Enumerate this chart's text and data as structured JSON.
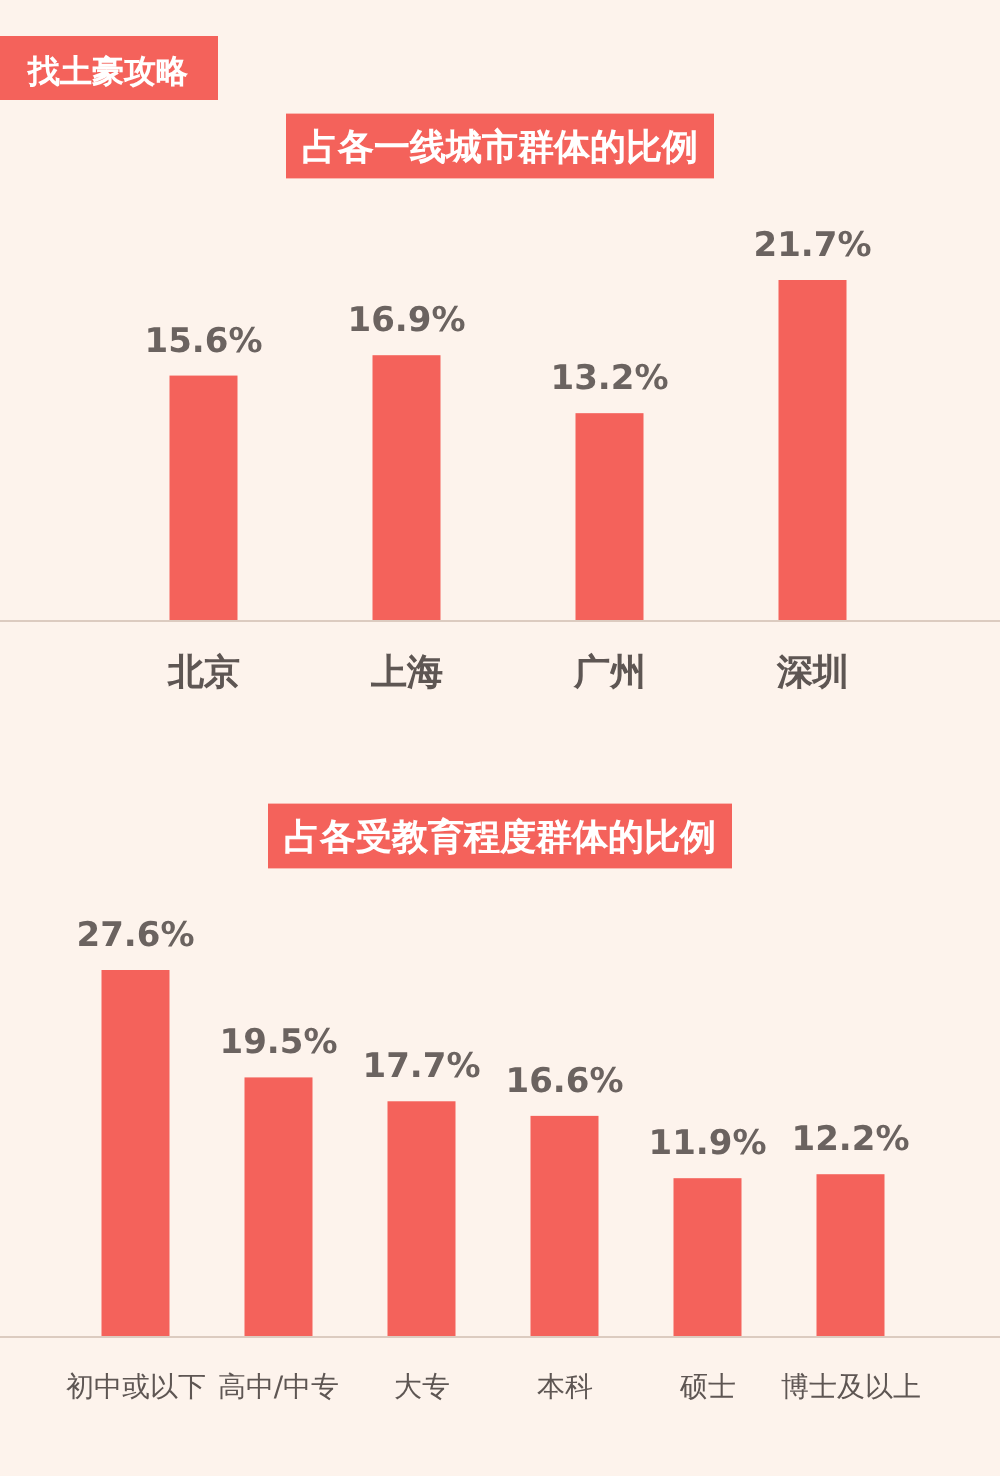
{
  "chart_data": [
    {
      "type": "bar",
      "title": "占各一线城市群体的比例",
      "annotations": [
        "找土豪攻略"
      ],
      "categories": [
        "北京",
        "上海",
        "广州",
        "深圳"
      ],
      "values": [
        15.6,
        16.9,
        13.2,
        21.7
      ],
      "color": "#f4625b",
      "value_labels": [
        "15.6%",
        "16.9%",
        "13.2%",
        "21.7%"
      ]
    },
    {
      "type": "bar",
      "title": "占各受教育程度群体的比例",
      "categories": [
        "初中或以下",
        "高中/中专",
        "大专",
        "本科",
        "硕士",
        "博士及以上"
      ],
      "values": [
        27.6,
        19.5,
        17.7,
        16.6,
        11.9,
        12.2
      ],
      "color": "#f4625b",
      "value_labels": [
        "27.6%",
        "19.5%",
        "17.7%",
        "16.6%",
        "11.9%",
        "12.2%"
      ]
    }
  ]
}
